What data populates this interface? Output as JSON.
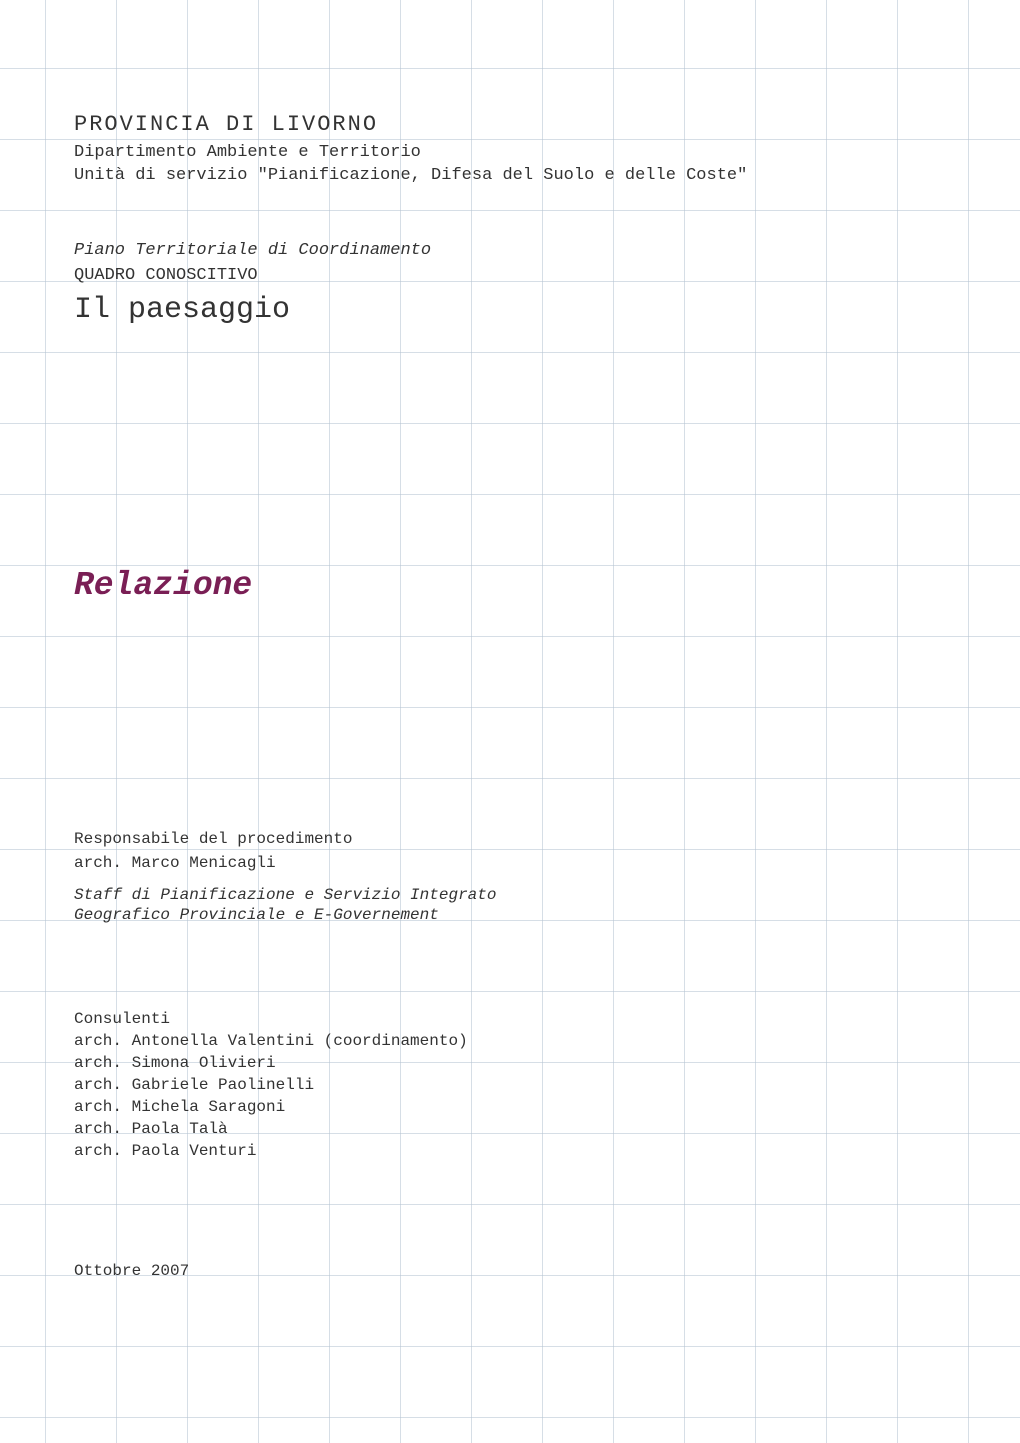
{
  "header": {
    "org_title": "PROVINCIA DI LIVORNO",
    "department": "Dipartimento Ambiente e Territorio",
    "unit": "Unità di servizio \"Pianificazione, Difesa del Suolo e delle Coste\"",
    "plan_title": "Piano Territoriale di Coordinamento",
    "quadro": "QUADRO CONOSCITIVO",
    "subject": "Il paesaggio",
    "doc_type": "Relazione"
  },
  "responsible": {
    "label": "Responsabile del procedimento",
    "name": "arch. Marco Menicagli"
  },
  "staff": {
    "line1": "Staff di Pianificazione e Servizio Integrato",
    "line2": "Geografico Provinciale e E-Governement"
  },
  "consultants": {
    "label": "Consulenti",
    "items": [
      "arch. Antonella Valentini (coordinamento)",
      "arch. Simona Olivieri",
      "arch. Gabriele Paolinelli",
      "arch. Michela Saragoni",
      "arch. Paola Talà",
      "arch. Paola Venturi"
    ]
  },
  "date": "Ottobre 2007",
  "styles": {
    "org_title_fontsize": 22,
    "body_fontsize": 17,
    "subject_fontsize": 30,
    "relazione_fontsize": 33,
    "small_fontsize": 16,
    "relazione_color": "#7a1f55",
    "text_color": "#333333",
    "grid_color": "#c2ced9",
    "background_color": "#ffffff"
  }
}
